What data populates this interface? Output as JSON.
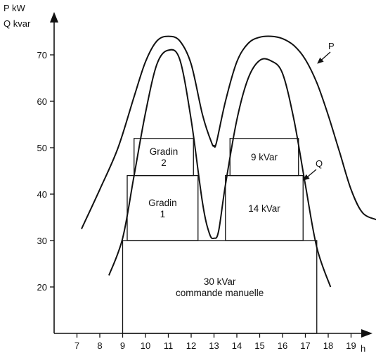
{
  "chart_data": {
    "type": "line",
    "x_unit": "h",
    "y_label_line1": "P kW",
    "y_label_line2": "Q kvar",
    "xlim": [
      6,
      20.5
    ],
    "ylim": [
      10,
      76
    ],
    "x_ticks": [
      "7",
      "8",
      "9",
      "10",
      "11",
      "12",
      "13",
      "14",
      "15",
      "16",
      "17",
      "18",
      "19"
    ],
    "y_ticks": [
      "20",
      "30",
      "40",
      "50",
      "60",
      "70"
    ],
    "series": [
      {
        "name": "P",
        "x": [
          7.2,
          8,
          8.8,
          9.5,
          10,
          10.5,
          11,
          11.5,
          12,
          12.5,
          12.9,
          13,
          13.1,
          13.5,
          14,
          14.5,
          15,
          15.5,
          16,
          16.5,
          17,
          17.5,
          18,
          18.5,
          19,
          19.5,
          20.1
        ],
        "values": [
          32.5,
          41,
          50,
          61,
          68.5,
          73,
          74,
          73,
          68,
          57,
          51,
          50.5,
          51,
          60,
          68.5,
          72.5,
          73.8,
          74,
          73.5,
          72,
          69,
          64,
          57,
          49,
          41,
          36,
          34.5
        ]
      },
      {
        "name": "Q",
        "x": [
          8.4,
          9,
          9.5,
          10,
          10.5,
          11,
          11.5,
          12,
          12.5,
          12.8,
          13,
          13.2,
          13.5,
          14,
          14.5,
          15,
          15.5,
          16,
          16.5,
          17,
          17.5,
          18.1
        ],
        "values": [
          22.5,
          30.5,
          44,
          57.5,
          68,
          71,
          69,
          56,
          38,
          31.5,
          30.5,
          32,
          42,
          56,
          65,
          68.8,
          68.7,
          66,
          56,
          42,
          28.5,
          20
        ]
      }
    ],
    "curve_labels": [
      {
        "text": "P"
      },
      {
        "text": "Q"
      }
    ],
    "capacitor_steps": [
      {
        "lines": [
          "30 kVar",
          "commande manuelle"
        ],
        "x_from": 9,
        "x_to": 17.5,
        "y_from": 10,
        "y_to": 30
      },
      {
        "lines": [
          "Gradin",
          "1"
        ],
        "x_from": 9.2,
        "x_to": 12.3,
        "y_from": 30,
        "y_to": 44
      },
      {
        "lines": [
          "Gradin",
          "2"
        ],
        "x_from": 9.5,
        "x_to": 12.1,
        "y_from": 44,
        "y_to": 52
      },
      {
        "lines": [
          "14 kVar"
        ],
        "x_from": 13.5,
        "x_to": 16.9,
        "y_from": 30,
        "y_to": 44
      },
      {
        "lines": [
          "9 kVar"
        ],
        "x_from": 13.7,
        "x_to": 16.7,
        "y_from": 44,
        "y_to": 52
      }
    ],
    "grid": false
  }
}
